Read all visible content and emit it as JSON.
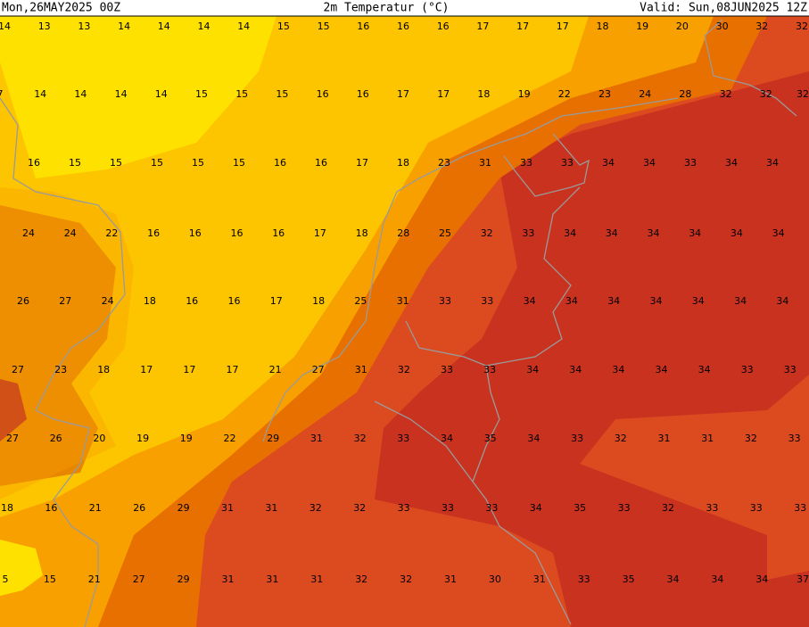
{
  "header": {
    "left": "Mon,26MAY2025 00Z",
    "title": "2m Temperatur (°C)",
    "right": "Valid: Sun,08JUN2025 12Z"
  },
  "grid": {
    "rows": [
      [
        14,
        13,
        13,
        14,
        14,
        14,
        14,
        15,
        15,
        16,
        16,
        16,
        17,
        17,
        17,
        18,
        19,
        20,
        30,
        32,
        32
      ],
      [
        7,
        14,
        14,
        14,
        14,
        15,
        15,
        15,
        16,
        16,
        17,
        17,
        18,
        19,
        22,
        23,
        24,
        28,
        32,
        32,
        32
      ],
      [
        16,
        15,
        15,
        15,
        15,
        15,
        16,
        16,
        17,
        18,
        23,
        31,
        33,
        33,
        34,
        34,
        33,
        34,
        34
      ],
      [
        24,
        24,
        22,
        16,
        16,
        16,
        16,
        17,
        18,
        28,
        25,
        32,
        33,
        34,
        34,
        34,
        34,
        34,
        34
      ],
      [
        26,
        27,
        24,
        18,
        16,
        16,
        17,
        18,
        25,
        31,
        33,
        33,
        34,
        34,
        34,
        34,
        34,
        34,
        34
      ],
      [
        27,
        23,
        18,
        17,
        17,
        17,
        21,
        27,
        31,
        32,
        33,
        33,
        34,
        34,
        34,
        34,
        34,
        33,
        33
      ],
      [
        27,
        26,
        20,
        19,
        19,
        22,
        29,
        31,
        32,
        33,
        34,
        35,
        34,
        33,
        32,
        31,
        31,
        32,
        33
      ],
      [
        18,
        16,
        21,
        26,
        29,
        31,
        31,
        32,
        32,
        33,
        33,
        33,
        34,
        35,
        33,
        32,
        33,
        33,
        33
      ],
      [
        5,
        15,
        21,
        27,
        29,
        31,
        31,
        31,
        32,
        32,
        31,
        30,
        31,
        33,
        35,
        34,
        34,
        34,
        37
      ]
    ]
  }
}
